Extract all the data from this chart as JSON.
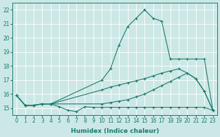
{
  "xlabel": "Humidex (Indice chaleur)",
  "bg_color": "#cce8e6",
  "grid_color": "#ffffff",
  "line_color": "#1a7a6e",
  "xlim": [
    -0.5,
    23.5
  ],
  "ylim": [
    14.5,
    22.5
  ],
  "xticks": [
    0,
    1,
    2,
    3,
    4,
    5,
    6,
    7,
    8,
    9,
    10,
    11,
    12,
    13,
    14,
    15,
    16,
    17,
    18,
    19,
    20,
    21,
    22,
    23
  ],
  "yticks": [
    15,
    16,
    17,
    18,
    19,
    20,
    21,
    22
  ],
  "series": [
    {
      "x": [
        0,
        1,
        2,
        3,
        4,
        5,
        6,
        7,
        8,
        9,
        10,
        11,
        12,
        13,
        14,
        15,
        16,
        17,
        18,
        19,
        20,
        21,
        22,
        23
      ],
      "y": [
        15.9,
        15.2,
        15.2,
        15.3,
        15.3,
        15.1,
        14.85,
        14.75,
        15.1,
        15.05,
        15.05,
        15.05,
        15.05,
        15.05,
        15.05,
        15.05,
        15.05,
        15.05,
        15.05,
        15.05,
        15.05,
        15.05,
        15.05,
        14.85
      ]
    },
    {
      "x": [
        0,
        1,
        2,
        3,
        4,
        10,
        11,
        12,
        13,
        14,
        15,
        16,
        17,
        18,
        19,
        20,
        21,
        22,
        23
      ],
      "y": [
        15.9,
        15.2,
        15.2,
        15.3,
        15.3,
        16.3,
        16.5,
        16.65,
        16.8,
        16.95,
        17.1,
        17.3,
        17.5,
        17.65,
        17.8,
        17.5,
        17.1,
        16.2,
        14.85
      ]
    },
    {
      "x": [
        0,
        1,
        2,
        3,
        4,
        10,
        11,
        12,
        13,
        14,
        15,
        16,
        17,
        18,
        19,
        20,
        21,
        22,
        23
      ],
      "y": [
        15.9,
        15.2,
        15.2,
        15.3,
        15.3,
        17.0,
        17.8,
        19.5,
        20.8,
        21.4,
        22.0,
        21.4,
        21.2,
        18.5,
        18.5,
        18.5,
        18.5,
        18.5,
        14.85
      ]
    },
    {
      "x": [
        0,
        1,
        2,
        3,
        4,
        10,
        11,
        12,
        13,
        14,
        15,
        16,
        17,
        18,
        19,
        20,
        21,
        22,
        23
      ],
      "y": [
        15.9,
        15.2,
        15.2,
        15.3,
        15.3,
        15.3,
        15.4,
        15.5,
        15.6,
        15.8,
        16.0,
        16.3,
        16.6,
        16.9,
        17.2,
        17.5,
        17.1,
        16.2,
        14.85
      ]
    }
  ]
}
